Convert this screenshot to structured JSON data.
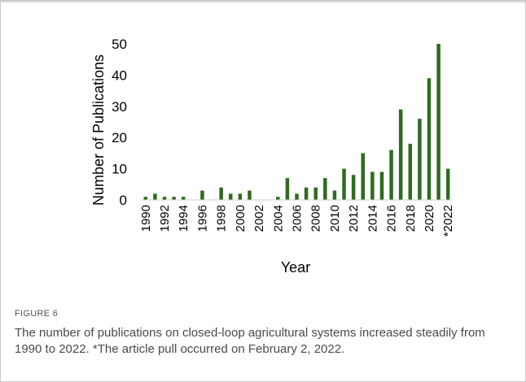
{
  "figure": {
    "label": "FIGURE 6",
    "caption": "The number of publications on closed-loop agricultural systems increased steadily from 1990 to 2022. *The article pull occurred on February 2, 2022."
  },
  "chart_data": {
    "type": "bar",
    "xlabel": "Year",
    "ylabel": "Number of Publications",
    "ylim": [
      0,
      50
    ],
    "yticks": [
      0,
      10,
      20,
      30,
      40,
      50
    ],
    "grid": false,
    "legend": "none",
    "bar_color": "#2e6b1f",
    "categories": [
      "1990",
      "1991",
      "1992",
      "1993",
      "1994",
      "1995",
      "1996",
      "1997",
      "1998",
      "1999",
      "2000",
      "2001",
      "2002",
      "2003",
      "2004",
      "2005",
      "2006",
      "2007",
      "2008",
      "2009",
      "2010",
      "2011",
      "2012",
      "2013",
      "2014",
      "2015",
      "2016",
      "2017",
      "2018",
      "2019",
      "2020",
      "2021",
      "*2022"
    ],
    "tick_labels": [
      "1990",
      "",
      "1992",
      "",
      "1994",
      "",
      "1996",
      "",
      "1998",
      "",
      "2000",
      "",
      "2002",
      "",
      "2004",
      "",
      "2006",
      "",
      "2008",
      "",
      "2010",
      "",
      "2012",
      "",
      "2014",
      "",
      "2016",
      "",
      "2018",
      "",
      "2020",
      "",
      "*2022"
    ],
    "values": [
      1,
      2,
      1,
      1,
      1,
      0,
      3,
      0,
      4,
      2,
      2,
      3,
      0,
      0,
      1,
      7,
      2,
      4,
      4,
      7,
      3,
      10,
      8,
      15,
      9,
      9,
      16,
      29,
      18,
      26,
      39,
      50,
      10
    ]
  }
}
